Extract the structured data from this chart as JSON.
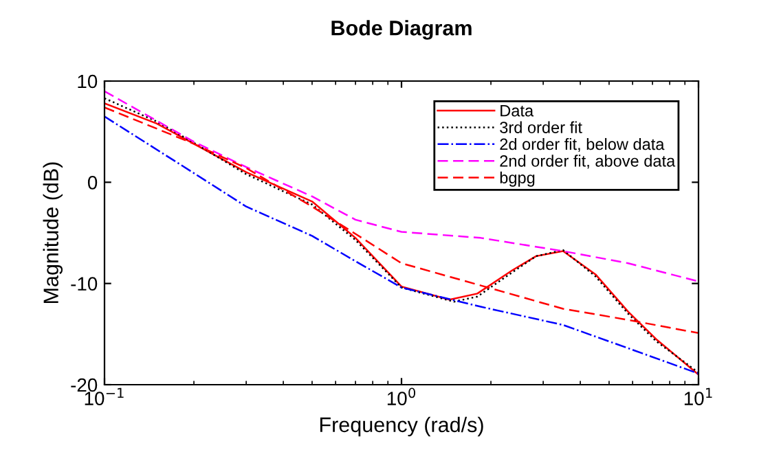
{
  "chart_data": {
    "type": "line",
    "title": "Bode Diagram",
    "xlabel": "Frequency (rad/s)",
    "ylabel": "Magnitude (dB)",
    "log": "x",
    "xlim": [
      0.1,
      10
    ],
    "ylim": [
      -20,
      10
    ],
    "xticks": [
      {
        "value": 0.1,
        "label": "10$^{−1}$"
      },
      {
        "value": 1,
        "label": "10$^{0}$"
      },
      {
        "value": 10,
        "label": "10$^{1}$"
      }
    ],
    "yticks": [
      -20,
      -10,
      0,
      10
    ],
    "grid": false,
    "legend": "top right",
    "series": [
      {
        "name": "Data",
        "color": "#ff0000",
        "line_style": "solid",
        "x": [
          0.1,
          0.15,
          0.2,
          0.3,
          0.5,
          0.7,
          1,
          1.45,
          1.8,
          2.36,
          2.84,
          3.5,
          4.5,
          5.8,
          7.2,
          10
        ],
        "values": [
          7.8,
          5.8,
          3.8,
          1.0,
          -1.9,
          -5.5,
          -10.3,
          -11.6,
          -11.0,
          -8.7,
          -7.3,
          -6.8,
          -9.1,
          -12.8,
          -15.5,
          -19.0
        ]
      },
      {
        "name": "3rd order fit",
        "color": "#000000",
        "line_style": "dotted",
        "x": [
          0.1,
          0.15,
          0.2,
          0.3,
          0.5,
          0.7,
          1,
          1.5,
          1.8,
          2.36,
          2.84,
          3.5,
          4.5,
          5.8,
          7.2,
          10
        ],
        "values": [
          8.3,
          6.0,
          3.9,
          0.8,
          -2.2,
          -5.7,
          -10.4,
          -11.8,
          -11.3,
          -8.9,
          -7.3,
          -6.7,
          -9.3,
          -13.0,
          -15.7,
          -18.8
        ]
      },
      {
        "name": "2d order fit, below data",
        "color": "#0000ff",
        "line_style": "dashdot",
        "x": [
          0.1,
          0.2,
          0.3,
          0.5,
          0.7,
          1,
          1.85,
          3.5,
          5.8,
          10
        ],
        "values": [
          6.5,
          0.9,
          -2.4,
          -5.3,
          -7.8,
          -10.4,
          -12.3,
          -14.1,
          -16.4,
          -18.9
        ]
      },
      {
        "name": "2nd order fit, above data",
        "color": "#ff00ff",
        "line_style": "dashed",
        "x": [
          0.1,
          0.2,
          0.3,
          0.5,
          0.7,
          1,
          1.85,
          3.5,
          5.8,
          10
        ],
        "values": [
          9.0,
          4.0,
          1.5,
          -1.4,
          -3.7,
          -4.9,
          -5.5,
          -6.8,
          -8.0,
          -9.8
        ]
      },
      {
        "name": "bgpg",
        "color": "#ff0000",
        "line_style": "dashed",
        "x": [
          0.1,
          0.2,
          0.3,
          0.5,
          0.7,
          1,
          1.85,
          3.5,
          5.8,
          10
        ],
        "values": [
          7.4,
          3.8,
          1.4,
          -2.4,
          -5.1,
          -8.0,
          -10.2,
          -12.5,
          -13.6,
          -14.9
        ]
      }
    ]
  }
}
